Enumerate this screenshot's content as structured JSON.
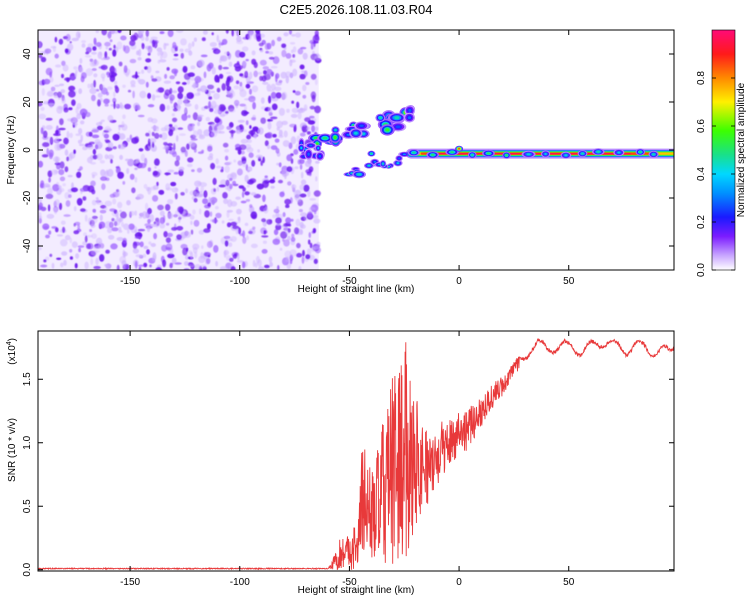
{
  "title": "C2E5.2026.108.11.03.R04",
  "chart_data": [
    {
      "type": "heatmap",
      "title": "C2E5.2026.108.11.03.R04",
      "xlabel": "Height of straight line (km)",
      "ylabel": "Frequency (Hz)",
      "xlim": [
        -192,
        98
      ],
      "ylim": [
        -50,
        50
      ],
      "x_ticks": [
        -150,
        -100,
        -50,
        0,
        50
      ],
      "y_ticks": [
        -40,
        -20,
        0,
        20,
        40
      ],
      "grid": false,
      "colorbar": {
        "label": "Normalized spectral amplitude",
        "range": [
          0,
          1
        ],
        "ticks": [
          "0.0",
          "0.2",
          "0.4",
          "0.6",
          "0.8"
        ],
        "tick_values": [
          0,
          0.2,
          0.4,
          0.6,
          0.8
        ],
        "colormap": [
          "#e8dcff",
          "#7b1cff",
          "#1a1aff",
          "#00c8ff",
          "#19e08a",
          "#3cff00",
          "#fff000",
          "#ff8a00",
          "#ff1a1a",
          "#ff0a78"
        ]
      },
      "regions": [
        {
          "desc": "broadband noise",
          "x": [
            -192,
            -64
          ],
          "freq": [
            -50,
            50
          ],
          "amplitude": [
            0.0,
            0.15
          ]
        },
        {
          "desc": "rising chirp",
          "x": [
            -70,
            -22
          ],
          "freq": [
            2,
            14
          ],
          "amplitude": [
            0.2,
            0.6
          ]
        },
        {
          "desc": "lower branch",
          "x": [
            -50,
            -20
          ],
          "freq": [
            -10,
            -2
          ],
          "amplitude": [
            0.2,
            0.5
          ]
        },
        {
          "desc": "steady tone",
          "x": [
            -25,
            98
          ],
          "freq": [
            -2,
            -1
          ],
          "amplitude": [
            0.5,
            1.0
          ]
        }
      ]
    },
    {
      "type": "line",
      "xlabel": "Height of straight line (km)",
      "ylabel": "SNR (10 * v/v)",
      "scale_label": "(x10",
      "scale_exponent": "4",
      "xlim": [
        -192,
        98
      ],
      "ylim": [
        -0.01,
        1.88
      ],
      "x_ticks": [
        -150,
        -100,
        -50,
        0,
        50
      ],
      "y_ticks": [
        "0.0",
        "0.5",
        "1.0",
        "1.5"
      ],
      "y_tick_values": [
        0,
        0.5,
        1.0,
        1.5
      ],
      "grid": false,
      "series": [
        {
          "color": "#e8393a",
          "envelope_x": [
            -192,
            -60,
            -58,
            -54,
            -50,
            -46,
            -44,
            -40,
            -36,
            -32,
            -28,
            -24,
            -20,
            -16,
            -12,
            -8,
            -4,
            0,
            4,
            8,
            12,
            16,
            20,
            24,
            28,
            32,
            36,
            40,
            44,
            48,
            52,
            56,
            60,
            64,
            68,
            72,
            76,
            80,
            84,
            88,
            92,
            96,
            98
          ],
          "envelope_mean": [
            0.0,
            0.0,
            0.03,
            0.12,
            0.15,
            0.2,
            0.6,
            0.42,
            0.55,
            0.7,
            0.85,
            0.95,
            0.88,
            0.82,
            0.8,
            0.95,
            1.0,
            1.1,
            1.1,
            1.2,
            1.3,
            1.38,
            1.45,
            1.55,
            1.65,
            1.73,
            1.78,
            1.75,
            1.74,
            1.77,
            1.75,
            1.72,
            1.76,
            1.78,
            1.8,
            1.75,
            1.72,
            1.78,
            1.75,
            1.72,
            1.73,
            1.7,
            1.76
          ],
          "envelope_amp": [
            0.0,
            0.005,
            0.04,
            0.15,
            0.15,
            0.2,
            0.5,
            0.35,
            0.5,
            0.7,
            0.85,
            0.85,
            0.55,
            0.35,
            0.22,
            0.22,
            0.2,
            0.18,
            0.16,
            0.14,
            0.12,
            0.1,
            0.08,
            0.07,
            0.05,
            0.05,
            0.04,
            0.04,
            0.04,
            0.04,
            0.05,
            0.05,
            0.05,
            0.04,
            0.04,
            0.05,
            0.05,
            0.05,
            0.05,
            0.06,
            0.05,
            0.06,
            0.04
          ]
        }
      ]
    }
  ]
}
